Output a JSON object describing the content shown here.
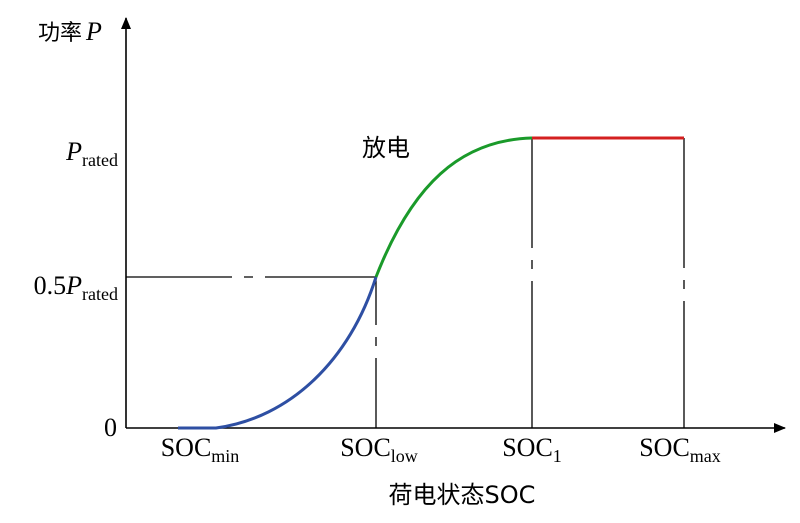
{
  "diagram": {
    "y_axis_label": {
      "cn": "功率",
      "symbol": "P"
    },
    "x_axis_label": "荷电状态SOC",
    "y_ticks": {
      "rated": {
        "prefix": "",
        "symbol": "P",
        "sub": "rated"
      },
      "half_rated": {
        "prefix": "0.5",
        "symbol": "P",
        "sub": "rated"
      },
      "zero": {
        "prefix": "0",
        "symbol": "",
        "sub": ""
      }
    },
    "x_ticks": {
      "min": {
        "base": "SOC",
        "sub": "min"
      },
      "low": {
        "base": "SOC",
        "sub": "low"
      },
      "one": {
        "base": "SOC",
        "sub": "1"
      },
      "max": {
        "base": "SOC",
        "sub": "max"
      }
    },
    "curve_label": "放电",
    "colors": {
      "axis": "#000000",
      "segment_low": "#2e4fa3",
      "segment_mid": "#1a9a2a",
      "segment_high": "#d42020"
    }
  }
}
